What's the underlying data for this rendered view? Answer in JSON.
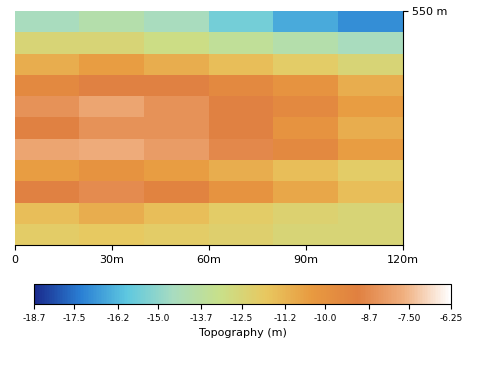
{
  "chart_data": {
    "type": "heatmap",
    "xlim": [
      0,
      120
    ],
    "xticks": [
      0,
      {
        "value": 30,
        "label": "30m"
      },
      {
        "value": 60,
        "label": "60m"
      },
      {
        "value": 90,
        "label": "90m"
      },
      {
        "value": 120,
        "label": "120m"
      }
    ],
    "ylim": [
      0,
      550
    ],
    "yticks": [
      {
        "value": 550,
        "label": "550 m"
      }
    ],
    "cells": [
      [
        -14.5,
        -14.0,
        -14.5,
        -15.5,
        -16.5,
        -17.0
      ],
      [
        -12.5,
        -12.5,
        -13.0,
        -13.5,
        -14.0,
        -14.5
      ],
      [
        -11.0,
        -10.5,
        -11.0,
        -11.5,
        -12.0,
        -12.5
      ],
      [
        -9.5,
        -9.0,
        -9.0,
        -9.5,
        -10.0,
        -11.0
      ],
      [
        -8.5,
        -8.0,
        -8.5,
        -9.0,
        -9.5,
        -10.5
      ],
      [
        -9.0,
        -8.5,
        -8.5,
        -9.0,
        -10.0,
        -11.0
      ],
      [
        -8.0,
        -7.8,
        -8.2,
        -8.8,
        -9.5,
        -10.5
      ],
      [
        -10.5,
        -10.0,
        -10.5,
        -11.0,
        -11.5,
        -12.0
      ],
      [
        -9.0,
        -8.7,
        -9.2,
        -10.0,
        -10.8,
        -11.5
      ],
      [
        -11.5,
        -11.0,
        -11.5,
        -12.0,
        -12.3,
        -12.5
      ],
      [
        -12.0,
        -11.8,
        -12.0,
        -12.2,
        -12.5,
        -12.5
      ]
    ],
    "colorbar": {
      "label": "Topography (m)",
      "range": [
        -18.7,
        -6.25
      ],
      "ticks": [
        -18.7,
        -17.5,
        -16.2,
        -15.0,
        -13.7,
        -12.5,
        -11.2,
        -10.0,
        -8.7,
        {
          "value": -7.5,
          "label": "-7.50"
        },
        -6.25
      ]
    }
  }
}
